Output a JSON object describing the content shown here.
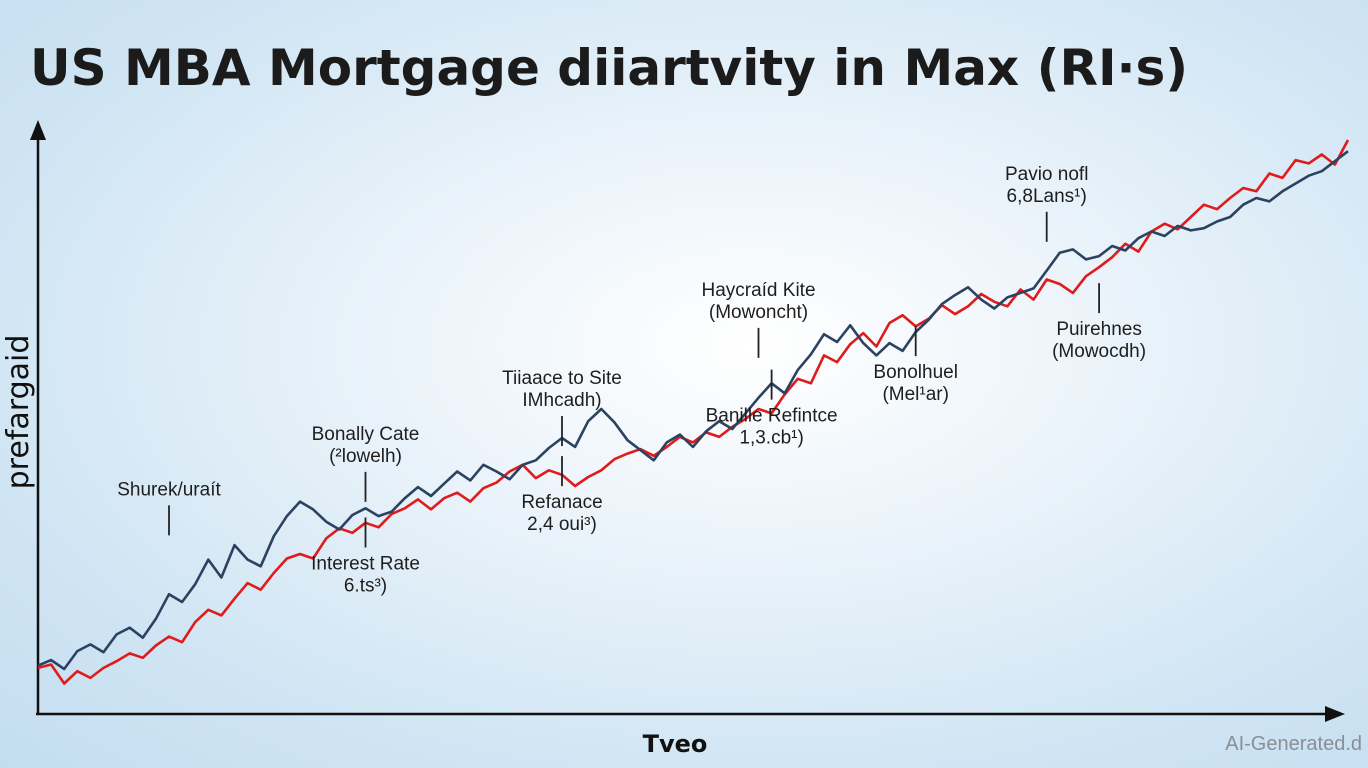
{
  "colors": {
    "red_series": "#e01b1b",
    "navy_series": "#2b4361",
    "axis": "#111111"
  },
  "chart_data": {
    "type": "line",
    "title": "US MBA Mortgage diiartvity in Max (RI·s)",
    "xlabel": "Tveo",
    "ylabel": "prefargaid",
    "xlim": [
      0,
      100
    ],
    "ylim": [
      0,
      100
    ],
    "grid": false,
    "legend": "none",
    "series": [
      {
        "color": "#e01b1b",
        "points": [
          [
            0,
            5.4
          ],
          [
            1,
            6
          ],
          [
            2,
            2.6
          ],
          [
            3,
            4.8
          ],
          [
            4,
            3.6
          ],
          [
            5,
            5.4
          ],
          [
            6,
            6.6
          ],
          [
            7,
            8
          ],
          [
            8,
            7.2
          ],
          [
            9,
            9.4
          ],
          [
            10,
            11
          ],
          [
            11,
            10
          ],
          [
            12,
            13.6
          ],
          [
            13,
            15.8
          ],
          [
            14,
            14.8
          ],
          [
            15,
            17.8
          ],
          [
            16,
            20.6
          ],
          [
            17,
            19.4
          ],
          [
            18,
            22.4
          ],
          [
            19,
            25
          ],
          [
            20,
            25.8
          ],
          [
            21,
            25
          ],
          [
            22,
            28.6
          ],
          [
            23,
            30.4
          ],
          [
            24,
            29.6
          ],
          [
            25,
            31.4
          ],
          [
            26,
            30.6
          ],
          [
            27,
            33
          ],
          [
            28,
            34
          ],
          [
            29,
            35.6
          ],
          [
            30,
            33.8
          ],
          [
            31,
            35.8
          ],
          [
            32,
            36.8
          ],
          [
            33,
            35.2
          ],
          [
            34,
            37.6
          ],
          [
            35,
            38.6
          ],
          [
            36,
            40.6
          ],
          [
            37,
            41.8
          ],
          [
            38,
            39.4
          ],
          [
            39,
            40.8
          ],
          [
            40,
            40
          ],
          [
            41,
            38
          ],
          [
            42,
            39.6
          ],
          [
            43,
            40.8
          ],
          [
            44,
            42.8
          ],
          [
            45,
            43.8
          ],
          [
            46,
            44.6
          ],
          [
            47,
            43.4
          ],
          [
            48,
            45
          ],
          [
            49,
            46.8
          ],
          [
            50,
            45.8
          ],
          [
            51,
            47.6
          ],
          [
            52,
            46.8
          ],
          [
            53,
            48.6
          ],
          [
            54,
            50
          ],
          [
            55,
            51.8
          ],
          [
            56,
            51
          ],
          [
            57,
            54.4
          ],
          [
            58,
            57.2
          ],
          [
            59,
            56.4
          ],
          [
            60,
            61.4
          ],
          [
            61,
            60.2
          ],
          [
            62,
            63.4
          ],
          [
            63,
            65.4
          ],
          [
            64,
            63
          ],
          [
            65,
            67.2
          ],
          [
            66,
            68.6
          ],
          [
            67,
            66.6
          ],
          [
            68,
            68
          ],
          [
            69,
            70.4
          ],
          [
            70,
            68.8
          ],
          [
            71,
            70.2
          ],
          [
            72,
            72.4
          ],
          [
            73,
            71
          ],
          [
            74,
            70.2
          ],
          [
            75,
            73.2
          ],
          [
            76,
            71.4
          ],
          [
            77,
            75
          ],
          [
            78,
            74.2
          ],
          [
            79,
            72.6
          ],
          [
            80,
            75.6
          ],
          [
            81,
            77.2
          ],
          [
            82,
            79
          ],
          [
            83,
            81.4
          ],
          [
            84,
            80
          ],
          [
            85,
            83.6
          ],
          [
            86,
            85
          ],
          [
            87,
            84
          ],
          [
            88,
            86.2
          ],
          [
            89,
            88.4
          ],
          [
            90,
            87.6
          ],
          [
            91,
            89.6
          ],
          [
            92,
            91.4
          ],
          [
            93,
            90.8
          ],
          [
            94,
            94
          ],
          [
            95,
            93.2
          ],
          [
            96,
            96.4
          ],
          [
            97,
            95.8
          ],
          [
            98,
            97.4
          ],
          [
            99,
            95.6
          ],
          [
            100,
            100
          ]
        ]
      },
      {
        "color": "#2b4361",
        "points": [
          [
            0,
            5.8
          ],
          [
            1,
            6.8
          ],
          [
            2,
            5.2
          ],
          [
            3,
            8.4
          ],
          [
            4,
            9.6
          ],
          [
            5,
            8.2
          ],
          [
            6,
            11.4
          ],
          [
            7,
            12.6
          ],
          [
            8,
            10.8
          ],
          [
            9,
            14.2
          ],
          [
            10,
            18.6
          ],
          [
            11,
            17.2
          ],
          [
            12,
            20.4
          ],
          [
            13,
            24.8
          ],
          [
            14,
            21.6
          ],
          [
            15,
            27.4
          ],
          [
            16,
            24.8
          ],
          [
            17,
            23.6
          ],
          [
            18,
            29
          ],
          [
            19,
            32.6
          ],
          [
            20,
            35.2
          ],
          [
            21,
            33.8
          ],
          [
            22,
            31.6
          ],
          [
            23,
            30.2
          ],
          [
            24,
            32.8
          ],
          [
            25,
            34
          ],
          [
            26,
            32.6
          ],
          [
            27,
            33.4
          ],
          [
            28,
            35.8
          ],
          [
            29,
            37.8
          ],
          [
            30,
            36.2
          ],
          [
            31,
            38.4
          ],
          [
            32,
            40.6
          ],
          [
            33,
            39
          ],
          [
            34,
            41.8
          ],
          [
            35,
            40.6
          ],
          [
            36,
            39.2
          ],
          [
            37,
            41.8
          ],
          [
            38,
            42.6
          ],
          [
            39,
            44.8
          ],
          [
            40,
            46.6
          ],
          [
            41,
            45
          ],
          [
            42,
            49.6
          ],
          [
            43,
            51.8
          ],
          [
            44,
            49.4
          ],
          [
            45,
            46.2
          ],
          [
            46,
            44.4
          ],
          [
            47,
            42.6
          ],
          [
            48,
            45.8
          ],
          [
            49,
            47.2
          ],
          [
            50,
            45
          ],
          [
            51,
            47.8
          ],
          [
            52,
            49.6
          ],
          [
            53,
            48.2
          ],
          [
            54,
            51
          ],
          [
            55,
            53.8
          ],
          [
            56,
            56.4
          ],
          [
            57,
            54.6
          ],
          [
            58,
            58.8
          ],
          [
            59,
            61.6
          ],
          [
            60,
            65.2
          ],
          [
            61,
            63.8
          ],
          [
            62,
            66.8
          ],
          [
            63,
            63.6
          ],
          [
            64,
            61.4
          ],
          [
            65,
            63.6
          ],
          [
            66,
            62.2
          ],
          [
            67,
            65.6
          ],
          [
            68,
            67.8
          ],
          [
            69,
            70.6
          ],
          [
            70,
            72.2
          ],
          [
            71,
            73.6
          ],
          [
            72,
            71.4
          ],
          [
            73,
            69.8
          ],
          [
            74,
            71.8
          ],
          [
            75,
            72.6
          ],
          [
            76,
            73.4
          ],
          [
            77,
            76.6
          ],
          [
            78,
            79.8
          ],
          [
            79,
            80.4
          ],
          [
            80,
            78.6
          ],
          [
            81,
            79.2
          ],
          [
            82,
            81
          ],
          [
            83,
            80.2
          ],
          [
            84,
            82.4
          ],
          [
            85,
            83.6
          ],
          [
            86,
            82.8
          ],
          [
            87,
            84.6
          ],
          [
            88,
            83.8
          ],
          [
            89,
            84.2
          ],
          [
            90,
            85.4
          ],
          [
            91,
            86.2
          ],
          [
            92,
            88.4
          ],
          [
            93,
            89.6
          ],
          [
            94,
            89
          ],
          [
            95,
            90.8
          ],
          [
            96,
            92.2
          ],
          [
            97,
            93.6
          ],
          [
            98,
            94.4
          ],
          [
            99,
            96.2
          ],
          [
            100,
            98
          ]
        ]
      }
    ],
    "annotations": [
      {
        "x": 10,
        "y": 27,
        "text": [
          "Shurek/uraít",
          ""
        ]
      },
      {
        "x": 25,
        "y": 34.5,
        "text": [
          "Interest Rate",
          "6.ts³)"
        ]
      },
      {
        "x": 25,
        "y": 33,
        "text": [
          "Bonally Cate",
          "(²lowelh)"
        ]
      },
      {
        "x": 40,
        "y": 45.5,
        "text": [
          "Refanace",
          "2,4 oui³)"
        ]
      },
      {
        "x": 40,
        "y": 43,
        "text": [
          "Tiiaace to Site",
          "IMhcadh)"
        ]
      },
      {
        "x": 56,
        "y": 61,
        "text": [
          "Banille Refintce",
          "1,3.cb¹)"
        ]
      },
      {
        "x": 55,
        "y": 58.8,
        "text": [
          "Haycraíd Kite",
          "(Mowoncht)"
        ]
      },
      {
        "x": 67,
        "y": 68.8,
        "text": [
          "Bonolhuel",
          "(Mel¹ar)"
        ]
      },
      {
        "x": 77,
        "y": 79.6,
        "text": [
          "Pavio nofl",
          "6,8Lans¹)"
        ]
      },
      {
        "x": 81,
        "y": 76.5,
        "text": [
          "Puirehnes",
          "(Mowocdh)"
        ]
      }
    ],
    "watermark": "AI-Generated.d"
  }
}
